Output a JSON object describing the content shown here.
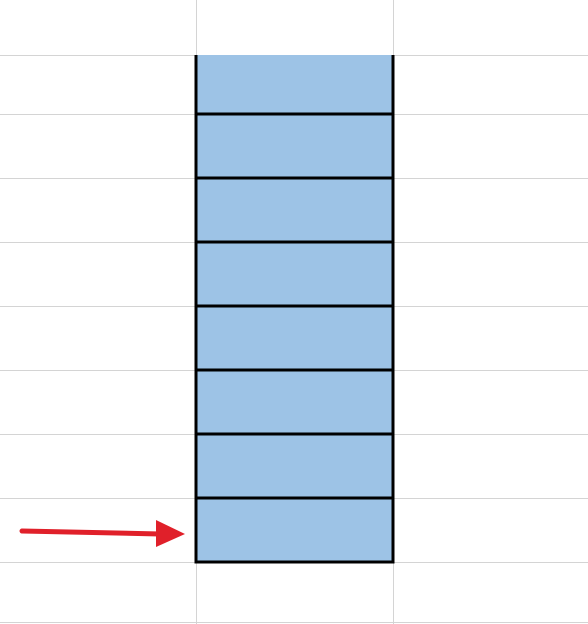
{
  "sheet": {
    "gridline_color": "#d4d4d4",
    "background_color": "#ffffff"
  },
  "selection": {
    "fill_color": "#9dc3e6",
    "border_color": "#000000",
    "cell_count": 8
  },
  "annotation": {
    "icon": "arrow-right-icon",
    "color": "#e0202a",
    "points_to_cell": 8
  }
}
